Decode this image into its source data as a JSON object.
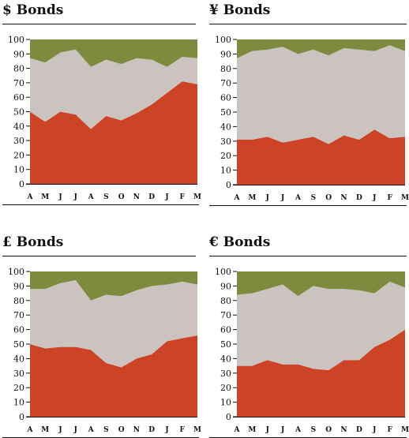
{
  "colors": {
    "bottom": "#cc4425",
    "middle": "#cac3c0",
    "top": "#7e8a3d",
    "ink": "#111111"
  },
  "chart_data": [
    {
      "type": "area",
      "title": "$ Bonds",
      "categories": [
        "A",
        "M",
        "J",
        "J",
        "A",
        "S",
        "O",
        "N",
        "D",
        "J",
        "F",
        "M"
      ],
      "yticks": [
        0,
        10,
        20,
        30,
        40,
        50,
        60,
        70,
        80,
        90,
        100
      ],
      "ylim": [
        0,
        100
      ],
      "stacked": true,
      "grid": false,
      "series": [
        {
          "values": [
            50,
            43,
            50,
            48,
            38,
            47,
            44,
            49,
            55,
            63,
            71,
            69
          ]
        },
        {
          "values": [
            37,
            41,
            41,
            45,
            43,
            39,
            39,
            38,
            31,
            18,
            17,
            18
          ]
        },
        {
          "values": [
            13,
            16,
            9,
            7,
            19,
            14,
            17,
            13,
            14,
            19,
            12,
            13
          ]
        }
      ]
    },
    {
      "type": "area",
      "title": "¥ Bonds",
      "categories": [
        "A",
        "M",
        "J",
        "J",
        "A",
        "S",
        "O",
        "N",
        "D",
        "J",
        "F",
        "M"
      ],
      "yticks": [
        0,
        10,
        20,
        30,
        40,
        50,
        60,
        70,
        80,
        90,
        100
      ],
      "ylim": [
        0,
        100
      ],
      "stacked": true,
      "grid": false,
      "series": [
        {
          "values": [
            31,
            31,
            33,
            29,
            31,
            33,
            28,
            34,
            31,
            38,
            32,
            33
          ]
        },
        {
          "values": [
            56,
            61,
            60,
            66,
            59,
            60,
            61,
            60,
            62,
            54,
            64,
            59
          ]
        },
        {
          "values": [
            13,
            8,
            7,
            5,
            10,
            7,
            11,
            6,
            7,
            8,
            4,
            8
          ]
        }
      ]
    },
    {
      "type": "area",
      "title": "£ Bonds",
      "categories": [
        "A",
        "M",
        "J",
        "J",
        "A",
        "S",
        "O",
        "N",
        "D",
        "J",
        "F",
        "M"
      ],
      "yticks": [
        0,
        10,
        20,
        30,
        40,
        50,
        60,
        70,
        80,
        90,
        100
      ],
      "ylim": [
        0,
        100
      ],
      "stacked": true,
      "grid": false,
      "series": [
        {
          "values": [
            50,
            47,
            48,
            48,
            46,
            37,
            34,
            40,
            43,
            52,
            54,
            56
          ]
        },
        {
          "values": [
            38,
            41,
            44,
            46,
            34,
            47,
            49,
            47,
            47,
            39,
            39,
            35
          ]
        },
        {
          "values": [
            12,
            12,
            8,
            6,
            20,
            16,
            17,
            13,
            10,
            9,
            7,
            9
          ]
        }
      ]
    },
    {
      "type": "area",
      "title": "€ Bonds",
      "categories": [
        "A",
        "M",
        "J",
        "J",
        "A",
        "S",
        "O",
        "N",
        "D",
        "J",
        "F",
        "M"
      ],
      "yticks": [
        0,
        10,
        20,
        30,
        40,
        50,
        60,
        70,
        80,
        90,
        100
      ],
      "ylim": [
        0,
        100
      ],
      "stacked": true,
      "grid": false,
      "series": [
        {
          "values": [
            35,
            35,
            39,
            36,
            36,
            33,
            32,
            39,
            39,
            48,
            53,
            60
          ]
        },
        {
          "values": [
            49,
            50,
            49,
            55,
            47,
            57,
            56,
            49,
            48,
            37,
            40,
            29
          ]
        },
        {
          "values": [
            16,
            15,
            12,
            9,
            17,
            10,
            12,
            12,
            13,
            15,
            7,
            11
          ]
        }
      ]
    }
  ]
}
